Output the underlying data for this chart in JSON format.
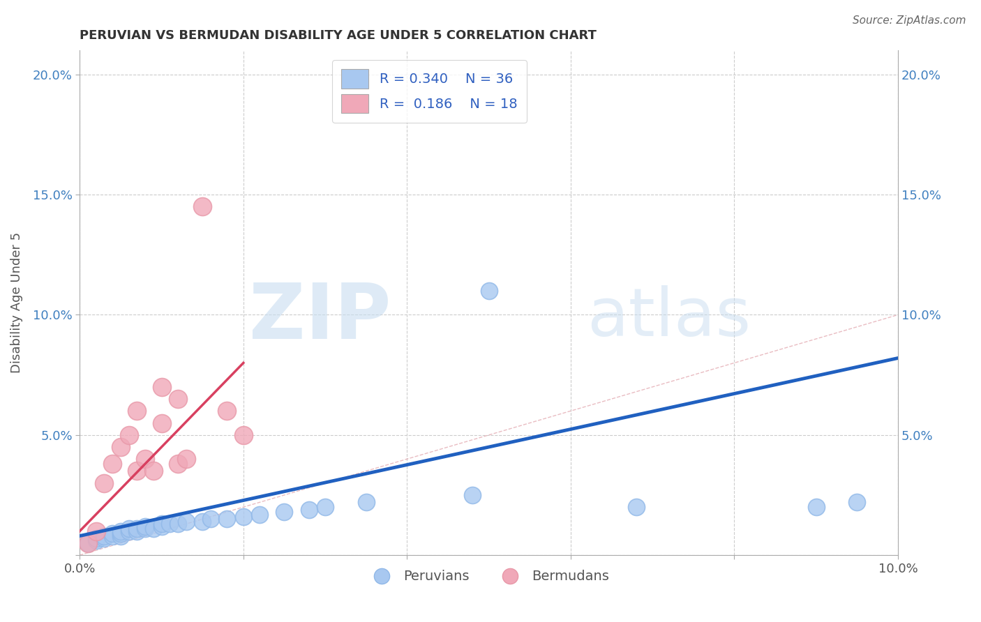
{
  "title": "PERUVIAN VS BERMUDAN DISABILITY AGE UNDER 5 CORRELATION CHART",
  "source": "Source: ZipAtlas.com",
  "xlabel": "",
  "ylabel": "Disability Age Under 5",
  "xlim": [
    0.0,
    0.1
  ],
  "ylim": [
    0.0,
    0.21
  ],
  "xticks": [
    0.0,
    0.02,
    0.04,
    0.06,
    0.08,
    0.1
  ],
  "yticks": [
    0.0,
    0.05,
    0.1,
    0.15,
    0.2
  ],
  "xticklabels": [
    "0.0%",
    "",
    "",
    "",
    "",
    "10.0%"
  ],
  "yticklabels": [
    "",
    "5.0%",
    "10.0%",
    "15.0%",
    "20.0%"
  ],
  "peruvian_color": "#A8C8F0",
  "bermudan_color": "#F0A8B8",
  "peruvian_edge_color": "#90B8E8",
  "bermudan_edge_color": "#E898A8",
  "peruvian_line_color": "#2060C0",
  "bermudan_line_color": "#D84060",
  "legend_text_color": "#3060C0",
  "legend_R_peruvian": "0.340",
  "legend_N_peruvian": "36",
  "legend_R_bermudan": "0.186",
  "legend_N_bermudan": "18",
  "watermark_zip": "ZIP",
  "watermark_atlas": "atlas",
  "background_color": "#ffffff",
  "grid_color": "#cccccc",
  "diagonal_color": "#E0A0A8",
  "peruvian_x": [
    0.001,
    0.002,
    0.002,
    0.003,
    0.003,
    0.004,
    0.004,
    0.005,
    0.005,
    0.005,
    0.006,
    0.006,
    0.007,
    0.007,
    0.008,
    0.008,
    0.009,
    0.01,
    0.01,
    0.011,
    0.012,
    0.013,
    0.015,
    0.016,
    0.018,
    0.02,
    0.022,
    0.025,
    0.028,
    0.03,
    0.035,
    0.048,
    0.05,
    0.068,
    0.09,
    0.095
  ],
  "peruvian_y": [
    0.005,
    0.006,
    0.007,
    0.007,
    0.008,
    0.008,
    0.009,
    0.008,
    0.009,
    0.01,
    0.01,
    0.011,
    0.01,
    0.011,
    0.011,
    0.012,
    0.011,
    0.012,
    0.013,
    0.013,
    0.013,
    0.014,
    0.014,
    0.015,
    0.015,
    0.016,
    0.017,
    0.018,
    0.019,
    0.02,
    0.022,
    0.025,
    0.11,
    0.02,
    0.02,
    0.022
  ],
  "bermudan_x": [
    0.001,
    0.002,
    0.003,
    0.004,
    0.005,
    0.006,
    0.007,
    0.007,
    0.008,
    0.009,
    0.01,
    0.01,
    0.012,
    0.012,
    0.013,
    0.015,
    0.018,
    0.02
  ],
  "bermudan_y": [
    0.005,
    0.01,
    0.03,
    0.038,
    0.045,
    0.05,
    0.035,
    0.06,
    0.04,
    0.035,
    0.055,
    0.07,
    0.038,
    0.065,
    0.04,
    0.145,
    0.06,
    0.05
  ],
  "peruvian_trend_x": [
    0.0,
    0.1
  ],
  "peruvian_trend_y": [
    0.008,
    0.082
  ],
  "bermudan_trend_x": [
    0.0,
    0.02
  ],
  "bermudan_trend_y": [
    0.01,
    0.08
  ]
}
